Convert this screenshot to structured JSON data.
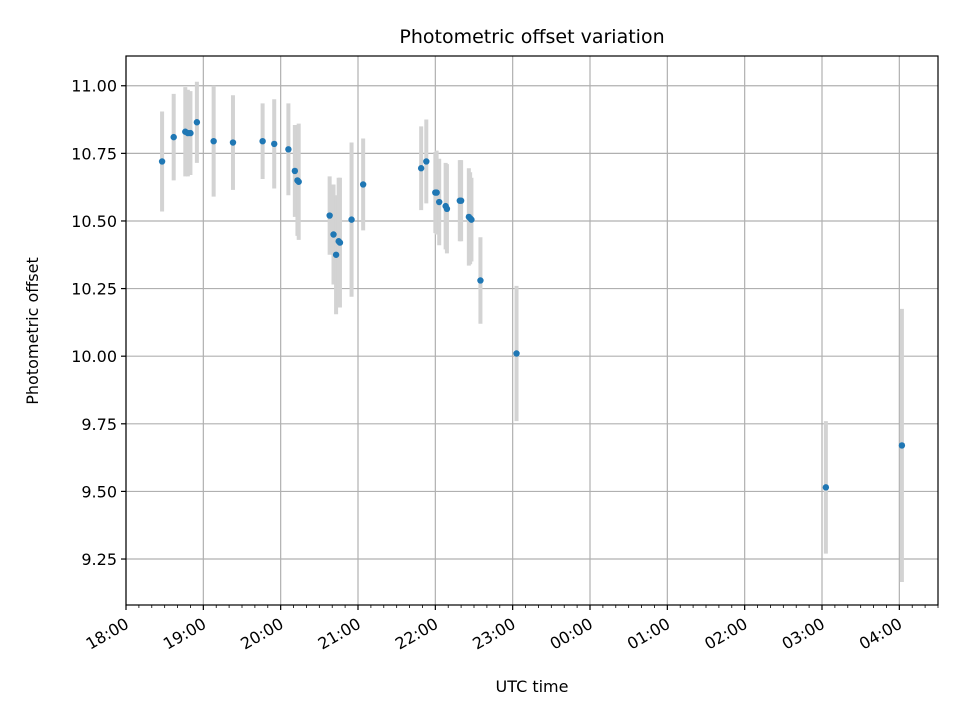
{
  "chart_data": {
    "type": "scatter",
    "title": "Photometric offset variation",
    "xlabel": "UTC time",
    "ylabel": "Photometric offset",
    "grid": true,
    "xlim": [
      "18:00",
      "04:30"
    ],
    "ylim": [
      9.08,
      11.11
    ],
    "x_tick_labels": [
      "18:00",
      "19:00",
      "20:00",
      "21:00",
      "22:00",
      "23:00",
      "00:00",
      "01:00",
      "02:00",
      "03:00",
      "04:00"
    ],
    "y_tick_labels": [
      "9.25",
      "9.50",
      "9.75",
      "10.00",
      "10.25",
      "10.50",
      "10.75",
      "11.00"
    ],
    "y_ticks": [
      9.25,
      9.5,
      9.75,
      10.0,
      10.25,
      10.5,
      10.75,
      11.0
    ],
    "colors": {
      "points": "#1f77b4",
      "errorbars": "#d3d3d3",
      "grid": "#b0b0b0"
    },
    "points": [
      {
        "x": "18:28",
        "y": 10.72,
        "err": 0.185
      },
      {
        "x": "18:37",
        "y": 10.81,
        "err": 0.16
      },
      {
        "x": "18:46",
        "y": 10.83,
        "err": 0.165
      },
      {
        "x": "18:48",
        "y": 10.825,
        "err": 0.16
      },
      {
        "x": "18:50",
        "y": 10.825,
        "err": 0.155
      },
      {
        "x": "18:55",
        "y": 10.865,
        "err": 0.15
      },
      {
        "x": "19:08",
        "y": 10.795,
        "err": 0.205
      },
      {
        "x": "19:23",
        "y": 10.79,
        "err": 0.175
      },
      {
        "x": "19:46",
        "y": 10.795,
        "err": 0.14
      },
      {
        "x": "19:55",
        "y": 10.785,
        "err": 0.165
      },
      {
        "x": "20:06",
        "y": 10.765,
        "err": 0.17
      },
      {
        "x": "20:11",
        "y": 10.685,
        "err": 0.17
      },
      {
        "x": "20:13",
        "y": 10.65,
        "err": 0.205
      },
      {
        "x": "20:14",
        "y": 10.645,
        "err": 0.215
      },
      {
        "x": "20:38",
        "y": 10.52,
        "err": 0.145
      },
      {
        "x": "20:41",
        "y": 10.45,
        "err": 0.185
      },
      {
        "x": "20:43",
        "y": 10.375,
        "err": 0.22
      },
      {
        "x": "20:45",
        "y": 10.425,
        "err": 0.235
      },
      {
        "x": "20:46",
        "y": 10.42,
        "err": 0.24
      },
      {
        "x": "20:55",
        "y": 10.505,
        "err": 0.285
      },
      {
        "x": "21:04",
        "y": 10.635,
        "err": 0.17
      },
      {
        "x": "21:49",
        "y": 10.695,
        "err": 0.155
      },
      {
        "x": "21:53",
        "y": 10.72,
        "err": 0.155
      },
      {
        "x": "22:00",
        "y": 10.605,
        "err": 0.15
      },
      {
        "x": "22:01",
        "y": 10.605,
        "err": 0.155
      },
      {
        "x": "22:03",
        "y": 10.57,
        "err": 0.16
      },
      {
        "x": "22:08",
        "y": 10.555,
        "err": 0.16
      },
      {
        "x": "22:09",
        "y": 10.545,
        "err": 0.165
      },
      {
        "x": "22:19",
        "y": 10.575,
        "err": 0.15
      },
      {
        "x": "22:20",
        "y": 10.575,
        "err": 0.15
      },
      {
        "x": "22:26",
        "y": 10.515,
        "err": 0.18
      },
      {
        "x": "22:27",
        "y": 10.51,
        "err": 0.17
      },
      {
        "x": "22:28",
        "y": 10.505,
        "err": 0.155
      },
      {
        "x": "22:35",
        "y": 10.28,
        "err": 0.16
      },
      {
        "x": "23:03",
        "y": 10.01,
        "err": 0.25
      },
      {
        "x": "03:03",
        "y": 9.515,
        "err": 0.245
      },
      {
        "x": "04:02",
        "y": 9.67,
        "err": 0.505
      }
    ]
  }
}
